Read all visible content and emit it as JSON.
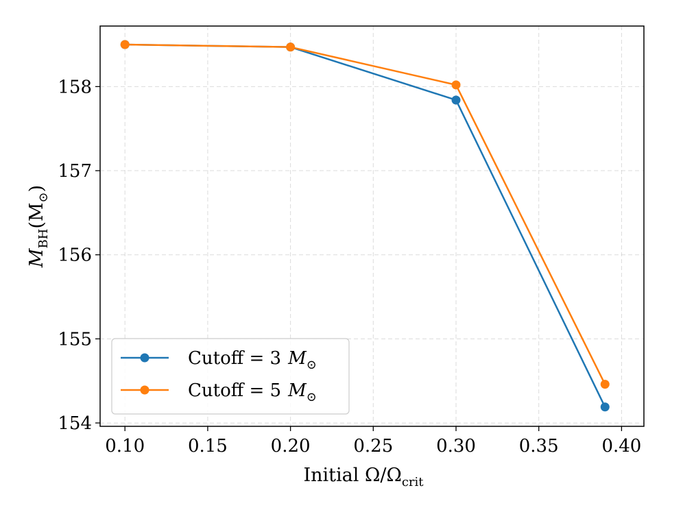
{
  "chart_data": {
    "type": "line",
    "title": "",
    "xlabel": "Initial Ω/Ω",
    "xlabel_sub": "crit",
    "ylabel": "M",
    "ylabel_sub": "BH",
    "ylabel_unit": "(M",
    "ylabel_unit_close": ")",
    "x_ticks": [
      "0.10",
      "0.15",
      "0.20",
      "0.25",
      "0.30",
      "0.35",
      "0.40"
    ],
    "y_ticks": [
      "154",
      "155",
      "156",
      "157",
      "158"
    ],
    "xlim": [
      0.085,
      0.4135
    ],
    "ylim": [
      153.96,
      158.72
    ],
    "grid": true,
    "legend_position": "lower-left",
    "series": [
      {
        "name": "Cutoff = 3 M",
        "legend_prefix": "Cutoff = 3",
        "legend_symbol": "M",
        "color": "#1f77b4",
        "x": [
          0.1,
          0.2,
          0.3,
          0.39
        ],
        "values": [
          158.5,
          158.47,
          157.84,
          154.19
        ]
      },
      {
        "name": "Cutoff = 5 M",
        "legend_prefix": "Cutoff = 5",
        "legend_symbol": "M",
        "color": "#ff7f0e",
        "x": [
          0.1,
          0.2,
          0.3,
          0.39
        ],
        "values": [
          158.5,
          158.47,
          158.02,
          154.46
        ]
      }
    ]
  }
}
